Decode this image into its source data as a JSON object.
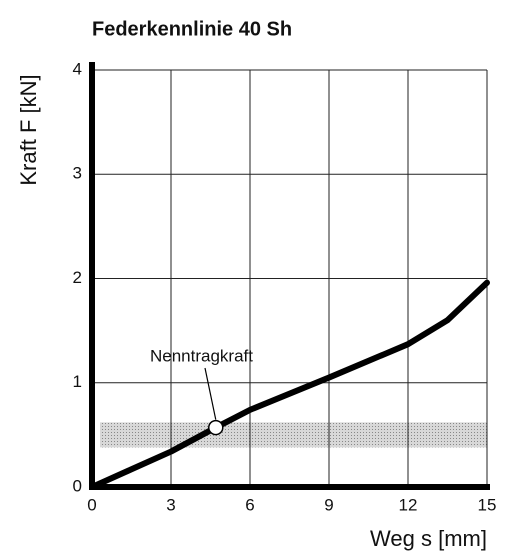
{
  "chart_data": {
    "type": "line",
    "title": "Federkennlinie  40 Sh",
    "x_label": "Weg s [mm]",
    "y_label": "Kraft F [kN]",
    "x": [
      0,
      1.5,
      3,
      4.7,
      6,
      9,
      12,
      13.5,
      15
    ],
    "values": [
      0,
      0.17,
      0.34,
      0.57,
      0.74,
      1.05,
      1.37,
      1.6,
      1.96
    ],
    "color": "#000000",
    "xlim": [
      0,
      15
    ],
    "ylim": [
      0,
      4
    ],
    "xticks": [
      0,
      3,
      6,
      9,
      12,
      15
    ],
    "yticks": [
      0,
      1,
      2,
      3,
      4
    ],
    "grid": true,
    "band": [
      0.38,
      0.62
    ],
    "annotation": {
      "text": "Nenntragkraft",
      "x": 4.7,
      "y": 0.57
    }
  }
}
